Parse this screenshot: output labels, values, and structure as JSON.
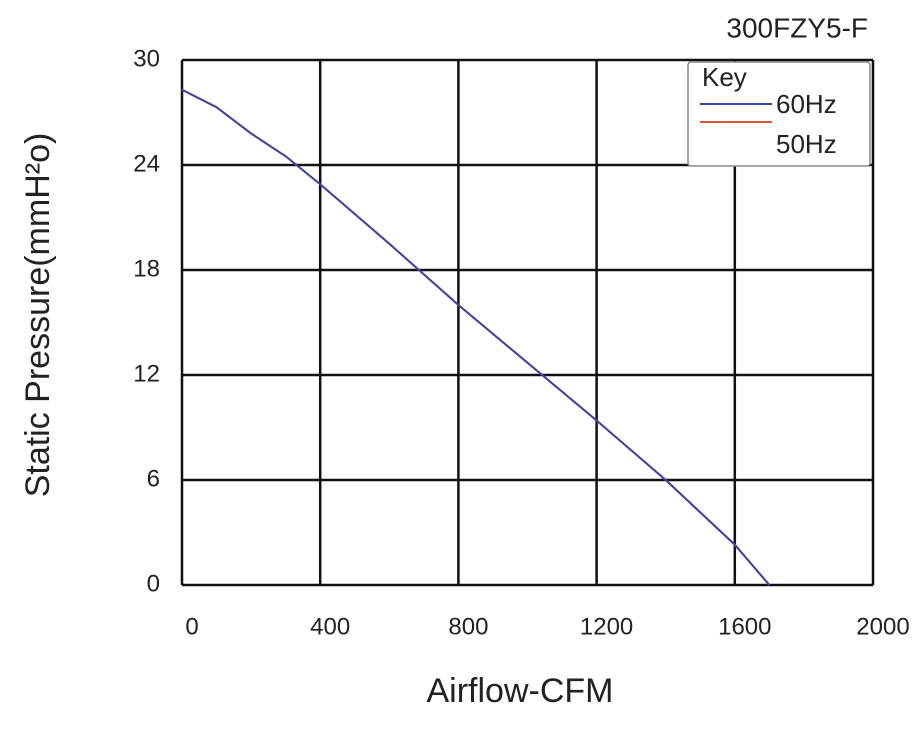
{
  "chart_data": {
    "type": "line",
    "title": "300FZY5-F",
    "x_label": "Airflow-CFM",
    "y_label": "Static Pressure(mmH²o)",
    "legend_title": "Key",
    "legend": "top-right",
    "grid": true,
    "x": [
      0,
      100,
      200,
      300,
      400,
      600,
      800,
      1000,
      1200,
      1400,
      1600,
      1700
    ],
    "series": [
      {
        "name": "60Hz",
        "color": "#3a46aa",
        "values": [
          28.3,
          27.3,
          25.8,
          24.5,
          22.9,
          19.5,
          16,
          12.7,
          9.4,
          6,
          2.3,
          0
        ]
      },
      {
        "name": "50Hz",
        "color": "#e2532f",
        "values": [
          28.3,
          27.3,
          25.8,
          24.5,
          22.9,
          19.5,
          16,
          12.7,
          9.4,
          6,
          2.3,
          0
        ]
      }
    ],
    "xlim": [
      0,
      2000
    ],
    "xticks": [
      0,
      400,
      800,
      1200,
      1600,
      2000
    ],
    "ylim": [
      0,
      30
    ],
    "yticks": [
      0,
      6,
      12,
      18,
      24,
      30
    ]
  }
}
